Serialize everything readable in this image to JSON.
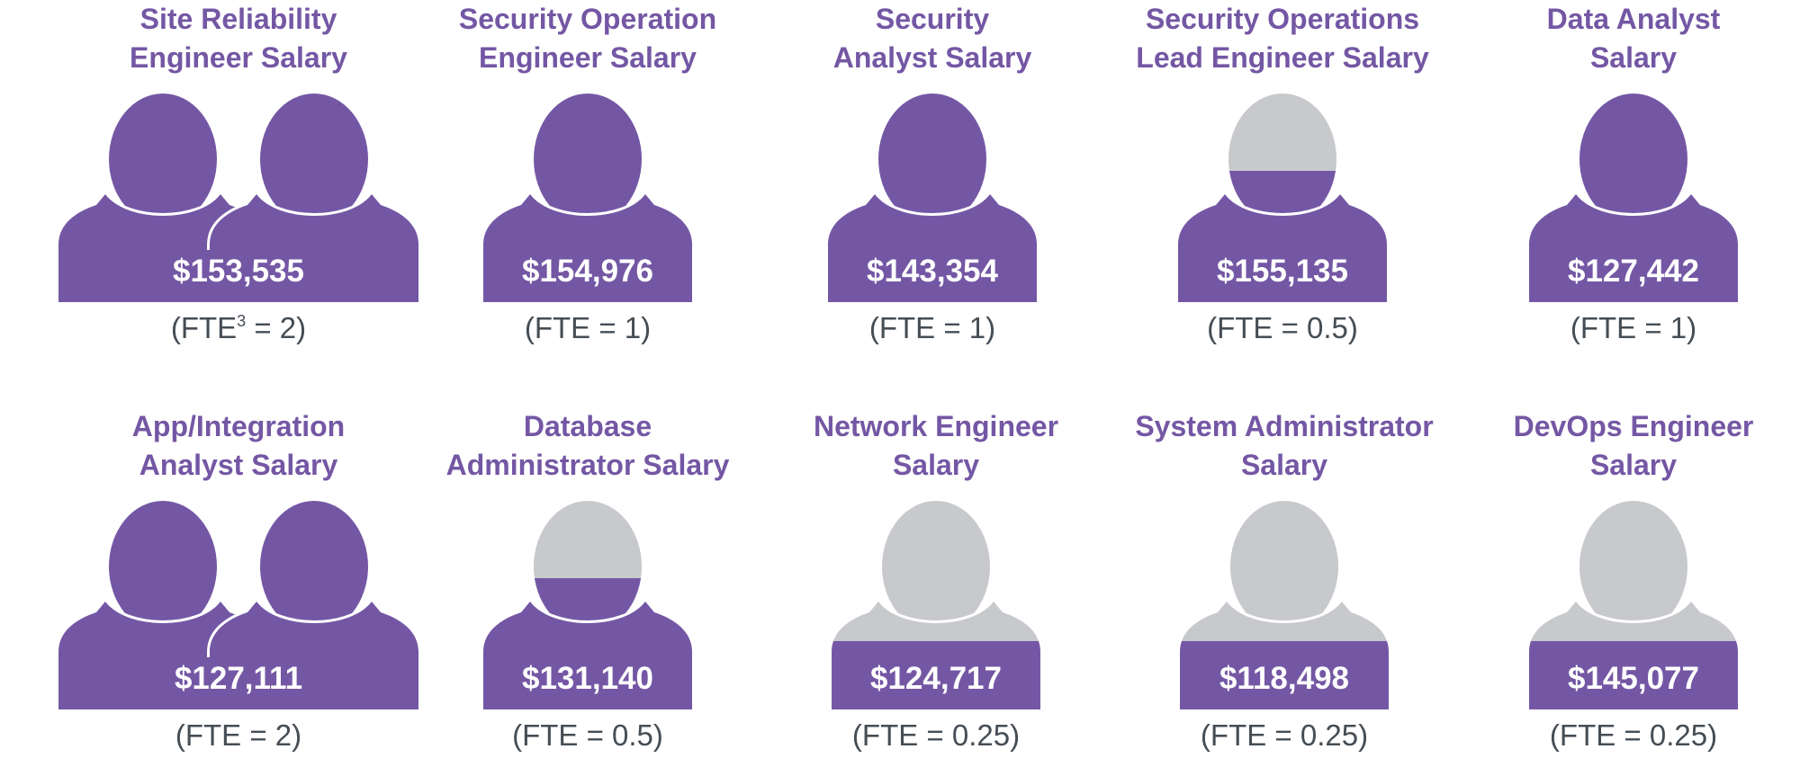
{
  "colors": {
    "filled": "#7457a4",
    "empty": "#c7c9cc",
    "title": "#7457a4",
    "fte_text": "#454d55",
    "salary_text": "#ffffff"
  },
  "cards": [
    {
      "title_line1": "Site Reliability",
      "title_line2": "Engineer Salary",
      "salary": "$153,535",
      "fte_prefix": "(FTE",
      "fte_sup": "3",
      "fte_suffix": " = 2)",
      "fte": 2
    },
    {
      "title_line1": "Security Operation",
      "title_line2": "Engineer Salary",
      "salary": "$154,976",
      "fte_prefix": "(FTE",
      "fte_sup": "",
      "fte_suffix": " = 1)",
      "fte": 1
    },
    {
      "title_line1": "Security",
      "title_line2": "Analyst Salary",
      "salary": "$143,354",
      "fte_prefix": "(FTE",
      "fte_sup": "",
      "fte_suffix": " = 1)",
      "fte": 1
    },
    {
      "title_line1": "Security Operations",
      "title_line2": "Lead Engineer Salary",
      "salary": "$155,135",
      "fte_prefix": "(FTE",
      "fte_sup": "",
      "fte_suffix": " = 0.5)",
      "fte": 0.5
    },
    {
      "title_line1": "Data Analyst",
      "title_line2": "Salary",
      "salary": "$127,442",
      "fte_prefix": "(FTE",
      "fte_sup": "",
      "fte_suffix": " = 1)",
      "fte": 1
    },
    {
      "title_line1": "App/Integration",
      "title_line2": "Analyst Salary",
      "salary": "$127,111",
      "fte_prefix": "(FTE",
      "fte_sup": "",
      "fte_suffix": " = 2)",
      "fte": 2
    },
    {
      "title_line1": "Database",
      "title_line2": "Administrator Salary",
      "salary": "$131,140",
      "fte_prefix": "(FTE",
      "fte_sup": "",
      "fte_suffix": " = 0.5)",
      "fte": 0.5
    },
    {
      "title_line1": "Network Engineer",
      "title_line2": "Salary",
      "salary": "$124,717",
      "fte_prefix": "(FTE",
      "fte_sup": "",
      "fte_suffix": " = 0.25)",
      "fte": 0.25
    },
    {
      "title_line1": "System Administrator",
      "title_line2": "Salary",
      "salary": "$118,498",
      "fte_prefix": "(FTE",
      "fte_sup": "",
      "fte_suffix": " = 0.25)",
      "fte": 0.25
    },
    {
      "title_line1": "DevOps Engineer",
      "title_line2": "Salary",
      "salary": "$145,077",
      "fte_prefix": "(FTE",
      "fte_sup": "",
      "fte_suffix": " = 0.25)",
      "fte": 0.25
    }
  ]
}
